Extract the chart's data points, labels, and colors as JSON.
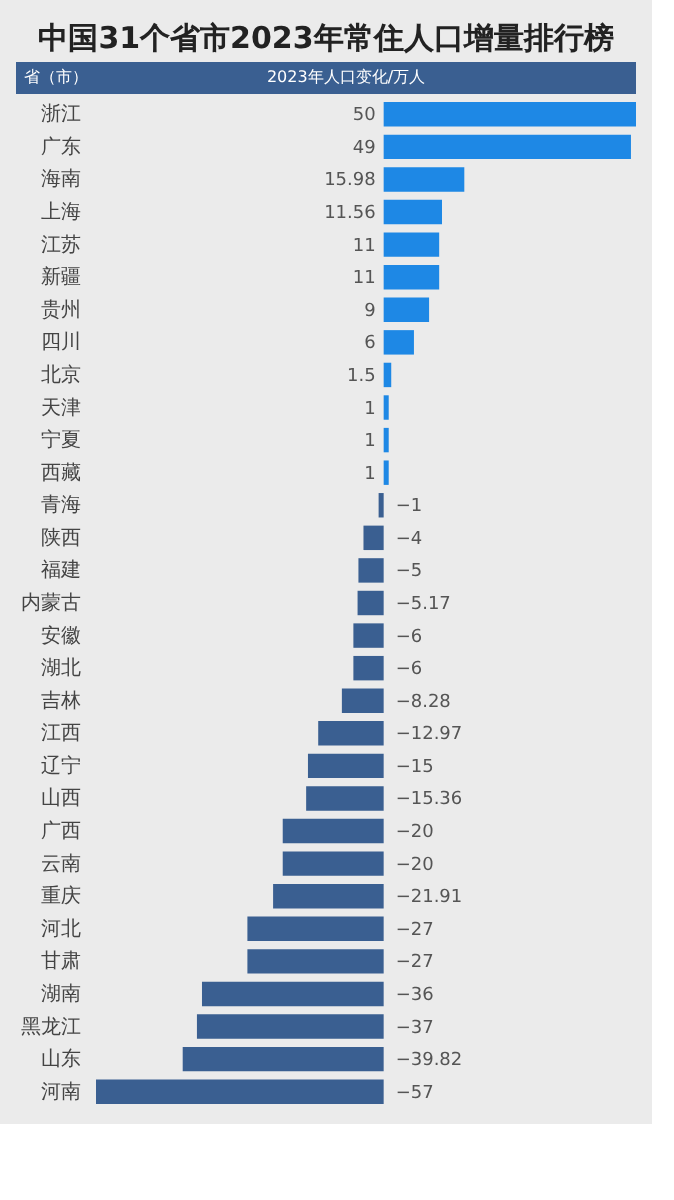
{
  "chart_data": {
    "type": "bar",
    "orientation": "horizontal",
    "title": "中国31个省市2023年常住人口增量排行榜",
    "ylabel": "省（市）",
    "xlabel": "2023年人口变化/万人",
    "categories": [
      "浙江",
      "广东",
      "海南",
      "上海",
      "江苏",
      "新疆",
      "贵州",
      "四川",
      "北京",
      "天津",
      "宁夏",
      "西藏",
      "青海",
      "陕西",
      "福建",
      "内蒙古",
      "安徽",
      "湖北",
      "吉林",
      "江西",
      "辽宁",
      "山西",
      "广西",
      "云南",
      "重庆",
      "河北",
      "甘肃",
      "湖南",
      "黑龙江",
      "山东",
      "河南"
    ],
    "values": [
      50,
      49,
      15.98,
      11.56,
      11,
      11,
      9,
      6,
      1.5,
      1,
      1,
      1,
      -1,
      -4,
      -5,
      -5.17,
      -6,
      -6,
      -8.28,
      -12.97,
      -15,
      -15.36,
      -20,
      -20,
      -21.91,
      -27,
      -27,
      -36,
      -37,
      -39.82,
      -57
    ],
    "colors": [
      "#1e88e5",
      "#1e88e5",
      "#1e88e5",
      "#1e88e5",
      "#1e88e5",
      "#1e88e5",
      "#1e88e5",
      "#1e88e5",
      "#1e88e5",
      "#1e88e5",
      "#1e88e5",
      "#1e88e5",
      "#3a5f91",
      "#3a5f91",
      "#3a5f91",
      "#3a5f91",
      "#3a5f91",
      "#3a5f91",
      "#3a5f91",
      "#3a5f91",
      "#3a5f91",
      "#3a5f91",
      "#3a5f91",
      "#3a5f91",
      "#3a5f91",
      "#3a5f91",
      "#3a5f91",
      "#3a5f91",
      "#3a5f91",
      "#3a5f91",
      "#3a5f91"
    ],
    "data_labels": true
  }
}
